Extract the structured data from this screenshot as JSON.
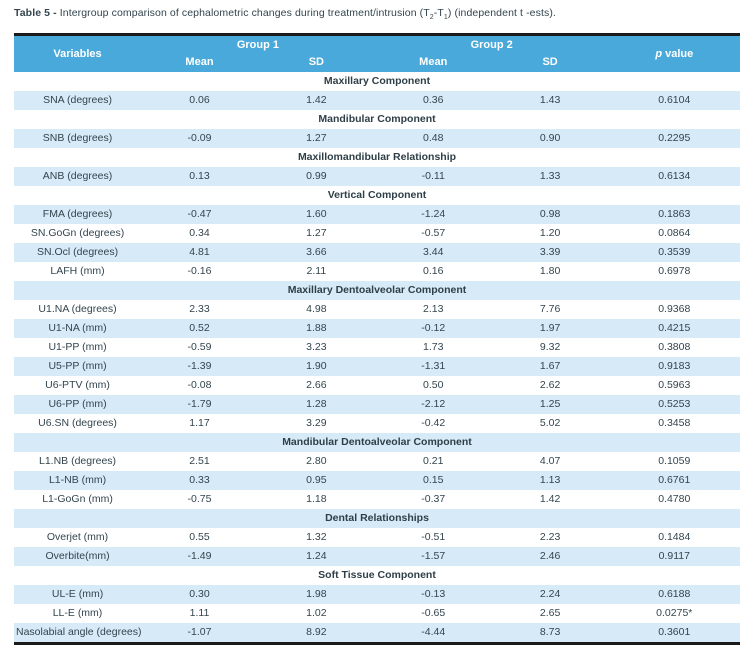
{
  "caption": {
    "label": "Table 5 -",
    "text_before_sub": " Intergroup comparison of cephalometric changes during treatment/intrusion (T",
    "sub_a": "2",
    "text_between": "-T",
    "sub_b": "1",
    "text_after": ") (independent t -ests)."
  },
  "colors": {
    "header_blue": "#4aa9db",
    "row_stripe_blue": "#d6eaf7",
    "border_black": "#1a1a1a",
    "text_dark": "#33454e"
  },
  "table": {
    "header": {
      "variables": "Variables",
      "group1": "Group 1",
      "group2": "Group 2",
      "mean": "Mean",
      "sd": "SD",
      "p_italic": "p",
      "p_rest": " value"
    },
    "rows": [
      {
        "type": "section",
        "label": "Maxillary Component"
      },
      {
        "type": "data",
        "label": "SNA (degrees)",
        "mean1": "0.06",
        "sd1": "1.42",
        "mean2": "0.36",
        "sd2": "1.43",
        "p": "0.6104"
      },
      {
        "type": "section",
        "label": "Mandibular Component"
      },
      {
        "type": "data",
        "label": "SNB (degrees)",
        "mean1": "-0.09",
        "sd1": "1.27",
        "mean2": "0.48",
        "sd2": "0.90",
        "p": "0.2295"
      },
      {
        "type": "section",
        "label": "Maxillomandibular Relationship"
      },
      {
        "type": "data",
        "label": "ANB (degrees)",
        "mean1": "0.13",
        "sd1": "0.99",
        "mean2": "-0.11",
        "sd2": "1.33",
        "p": "0.6134"
      },
      {
        "type": "section",
        "label": "Vertical Component"
      },
      {
        "type": "data",
        "label": "FMA (degrees)",
        "mean1": "-0.47",
        "sd1": "1.60",
        "mean2": "-1.24",
        "sd2": "0.98",
        "p": "0.1863"
      },
      {
        "type": "data",
        "label": "SN.GoGn (degrees)",
        "mean1": "0.34",
        "sd1": "1.27",
        "mean2": "-0.57",
        "sd2": "1.20",
        "p": "0.0864"
      },
      {
        "type": "data",
        "label": "SN.Ocl (degrees)",
        "mean1": "4.81",
        "sd1": "3.66",
        "mean2": "3.44",
        "sd2": "3.39",
        "p": "0.3539"
      },
      {
        "type": "data",
        "label": "LAFH (mm)",
        "mean1": "-0.16",
        "sd1": "2.11",
        "mean2": "0.16",
        "sd2": "1.80",
        "p": "0.6978"
      },
      {
        "type": "section",
        "label": "Maxillary Dentoalveolar Component"
      },
      {
        "type": "data",
        "label": "U1.NA (degrees)",
        "mean1": "2.33",
        "sd1": "4.98",
        "mean2": "2.13",
        "sd2": "7.76",
        "p": "0.9368"
      },
      {
        "type": "data",
        "label": "U1-NA (mm)",
        "mean1": "0.52",
        "sd1": "1.88",
        "mean2": "-0.12",
        "sd2": "1.97",
        "p": "0.4215"
      },
      {
        "type": "data",
        "label": "U1-PP (mm)",
        "mean1": "-0.59",
        "sd1": "3.23",
        "mean2": "1.73",
        "sd2": "9.32",
        "p": "0.3808"
      },
      {
        "type": "data",
        "label": "U5-PP (mm)",
        "mean1": "-1.39",
        "sd1": "1.90",
        "mean2": "-1.31",
        "sd2": "1.67",
        "p": "0.9183"
      },
      {
        "type": "data",
        "label": "U6-PTV (mm)",
        "mean1": "-0.08",
        "sd1": "2.66",
        "mean2": "0.50",
        "sd2": "2.62",
        "p": "0.5963"
      },
      {
        "type": "data",
        "label": "U6-PP (mm)",
        "mean1": "-1.79",
        "sd1": "1.28",
        "mean2": "-2.12",
        "sd2": "1.25",
        "p": "0.5253"
      },
      {
        "type": "data",
        "label": "U6.SN (degrees)",
        "mean1": "1.17",
        "sd1": "3.29",
        "mean2": "-0.42",
        "sd2": "5.02",
        "p": "0.3458"
      },
      {
        "type": "section",
        "label": "Mandibular Dentoalveolar Component"
      },
      {
        "type": "data",
        "label": "L1.NB (degrees)",
        "mean1": "2.51",
        "sd1": "2.80",
        "mean2": "0.21",
        "sd2": "4.07",
        "p": "0.1059"
      },
      {
        "type": "data",
        "label": "L1-NB (mm)",
        "mean1": "0.33",
        "sd1": "0.95",
        "mean2": "0.15",
        "sd2": "1.13",
        "p": "0.6761"
      },
      {
        "type": "data",
        "label": "L1-GoGn (mm)",
        "mean1": "-0.75",
        "sd1": "1.18",
        "mean2": "-0.37",
        "sd2": "1.42",
        "p": "0.4780"
      },
      {
        "type": "section",
        "label": "Dental Relationships"
      },
      {
        "type": "data",
        "label": "Overjet (mm)",
        "mean1": "0.55",
        "sd1": "1.32",
        "mean2": "-0.51",
        "sd2": "2.23",
        "p": "0.1484"
      },
      {
        "type": "data",
        "label": "Overbite(mm)",
        "mean1": "-1.49",
        "sd1": "1.24",
        "mean2": "-1.57",
        "sd2": "2.46",
        "p": "0.9117"
      },
      {
        "type": "section",
        "label": "Soft Tissue Component"
      },
      {
        "type": "data",
        "label": "UL-E (mm)",
        "mean1": "0.30",
        "sd1": "1.98",
        "mean2": "-0.13",
        "sd2": "2.24",
        "p": "0.6188"
      },
      {
        "type": "data",
        "label": "LL-E (mm)",
        "mean1": "1.11",
        "sd1": "1.02",
        "mean2": "-0.65",
        "sd2": "2.65",
        "p": "0.0275*"
      },
      {
        "type": "data",
        "label": "Nasolabial angle (degrees)",
        "mean1": "-1.07",
        "sd1": "8.92",
        "mean2": "-4.44",
        "sd2": "8.73",
        "p": "0.3601"
      }
    ]
  }
}
